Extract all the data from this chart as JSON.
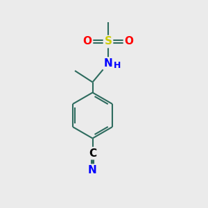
{
  "background_color": "#ebebeb",
  "bond_color": "#2d6b5e",
  "bond_width": 1.5,
  "atom_colors": {
    "S": "#cccc00",
    "O": "#ff0000",
    "N": "#0000ff",
    "C": "#000000",
    "H": "#0000ff"
  },
  "font_size_atom": 11,
  "font_size_h": 9
}
